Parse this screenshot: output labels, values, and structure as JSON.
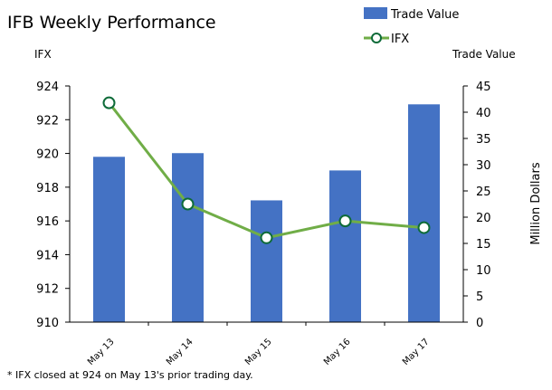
{
  "chart_data": {
    "type": "bar+line",
    "title": "IFB Weekly Performance",
    "categories": [
      "May 13",
      "May 14",
      "May 15",
      "May 16",
      "May 17"
    ],
    "series": [
      {
        "name": "Trade Value",
        "type": "bar",
        "axis": "right",
        "color": "#4472C4",
        "values": [
          31.5,
          32.2,
          23.2,
          28.9,
          41.5
        ]
      },
      {
        "name": "IFX",
        "type": "line",
        "axis": "left",
        "color": "#70AD47",
        "marker_edge": "#0E6B39",
        "values": [
          923.0,
          917.0,
          915.0,
          916.0,
          915.6
        ]
      }
    ],
    "left_axis": {
      "label": "IFX",
      "ylim": [
        910,
        924
      ],
      "ticks": [
        "910",
        "912",
        "914",
        "916",
        "918",
        "920",
        "922",
        "924"
      ]
    },
    "right_axis": {
      "label": "Trade Value",
      "side_label": "Million Dollars",
      "ylim": [
        0,
        45
      ],
      "ticks": [
        "0",
        "5",
        "10",
        "15",
        "20",
        "25",
        "30",
        "35",
        "40",
        "45"
      ]
    },
    "grid": false,
    "legend_position": "top-right",
    "footnote": "* IFX closed at 924 on May 13's prior trading day."
  }
}
